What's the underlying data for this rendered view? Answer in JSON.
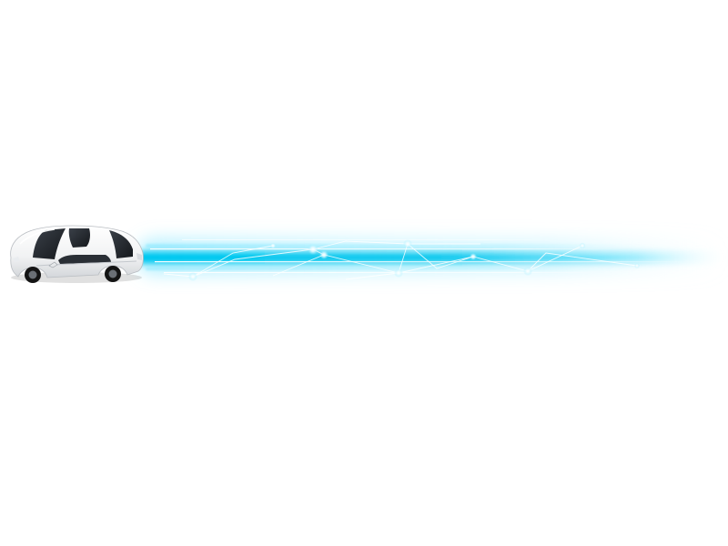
{
  "scene": {
    "subject": "car-icon",
    "effect": "light-trail",
    "colors": {
      "background": "#ffffff",
      "trail_core": "#00c8f0",
      "trail_glow": "#7fe6ff",
      "trail_highlight": "#e8fbff",
      "car_body": "#f4f4f4",
      "car_shadow": "#c9ccd1",
      "glass": "#1e2227",
      "wheel": "#141414"
    }
  }
}
